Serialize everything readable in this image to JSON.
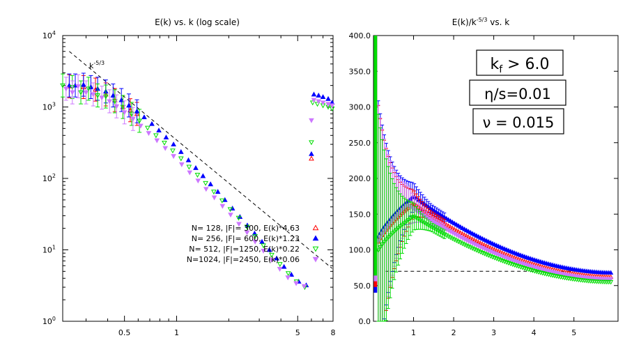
{
  "chart_data": [
    {
      "type": "scatter",
      "title": "E(k) vs. k (log scale)",
      "xscale": "log",
      "yscale": "log",
      "xlim": [
        0.22,
        8
      ],
      "ylim": [
        1,
        10000
      ],
      "xticks": [
        {
          "v": 0.5,
          "label": "0.5"
        },
        {
          "v": 1,
          "label": "1"
        },
        {
          "v": 5,
          "label": "5"
        },
        {
          "v": 8,
          "label": "8"
        }
      ],
      "yticks": [
        {
          "v": 1,
          "base": "10",
          "exp": "0"
        },
        {
          "v": 10,
          "base": "10",
          "exp": "1"
        },
        {
          "v": 100,
          "base": "10",
          "exp": "2"
        },
        {
          "v": 1000,
          "base": "10",
          "exp": "3"
        },
        {
          "v": 10000,
          "base": "10",
          "exp": "4"
        }
      ],
      "reference_line": {
        "label_base": "k",
        "label_exp": "-5/3",
        "k": [
          0.24,
          7.9
        ],
        "E": [
          6000,
          5.5
        ]
      },
      "legend_placement": "bottom-left",
      "series": [
        {
          "name": "N= 128, |F|= 300, E(k)*4.63",
          "color": "#ff0000",
          "marker": "triangle-up-open",
          "x": [
            0.24,
            0.29,
            0.34,
            0.39,
            0.44,
            0.49,
            0.54,
            0.59,
            6.0
          ],
          "y": [
            1950,
            1900,
            1750,
            1500,
            1250,
            1000,
            900,
            800,
            190
          ]
        },
        {
          "name": "N= 256, |F|= 600, E(k)*1.23",
          "color": "#0000ff",
          "marker": "triangle-up-filled",
          "x": [
            0.24,
            0.26,
            0.29,
            0.32,
            0.35,
            0.39,
            0.43,
            0.48,
            0.53,
            0.59,
            0.65,
            0.72,
            0.79,
            0.87,
            0.96,
            1.06,
            1.17,
            1.29,
            1.42,
            1.57,
            1.73,
            1.9,
            2.1,
            2.32,
            2.56,
            2.82,
            3.11,
            3.43,
            3.78,
            4.17,
            4.6,
            5.07,
            5.6,
            6.0,
            6.2,
            6.6,
            7.0,
            7.5,
            7.9
          ],
          "y": [
            2000,
            2000,
            2050,
            1900,
            1800,
            1650,
            1450,
            1250,
            1050,
            870,
            720,
            580,
            470,
            375,
            300,
            235,
            180,
            140,
            108,
            83,
            65,
            50,
            38,
            29,
            22,
            17,
            13,
            10,
            7.6,
            5.8,
            4.5,
            3.6,
            3.2,
            220,
            1500,
            1450,
            1380,
            1300,
            1150
          ]
        },
        {
          "name": "N= 512, |F|=1250, E(k)*0.22",
          "color": "#00dd00",
          "marker": "triangle-down-open",
          "x": [
            0.22,
            0.25,
            0.28,
            0.31,
            0.35,
            0.39,
            0.44,
            0.49,
            0.55,
            0.61,
            0.68,
            0.76,
            0.85,
            0.95,
            1.06,
            1.18,
            1.32,
            1.47,
            1.64,
            1.83,
            2.04,
            2.28,
            2.55,
            2.84,
            3.17,
            3.54,
            3.95,
            4.41,
            4.92,
            5.49,
            6.0,
            6.1,
            6.5,
            7.0,
            7.5,
            7.9
          ],
          "y": [
            2000,
            1900,
            1600,
            1800,
            1450,
            1400,
            1200,
            1000,
            800,
            640,
            510,
            400,
            315,
            245,
            190,
            145,
            112,
            86,
            65,
            49,
            37,
            28,
            21,
            15.5,
            11.5,
            8.5,
            6.3,
            4.7,
            3.6,
            3.0,
            320,
            1150,
            1100,
            1050,
            1000,
            950
          ]
        },
        {
          "name": "N=1024, |F|=2450, E(k)*0.06",
          "color": "#cc77ff",
          "marker": "triangle-down-filled",
          "x": [
            0.23,
            0.25,
            0.27,
            0.3,
            0.33,
            0.37,
            0.41,
            0.45,
            0.5,
            0.56,
            0.62,
            0.69,
            0.77,
            0.86,
            0.96,
            1.07,
            1.19,
            1.33,
            1.48,
            1.65,
            1.84,
            2.05,
            2.29,
            2.55,
            2.84,
            3.17,
            3.53,
            3.94,
            4.39,
            4.9,
            5.46,
            6.0,
            6.2,
            6.6,
            7.0,
            7.5,
            7.9
          ],
          "y": [
            1800,
            1600,
            1950,
            1600,
            1500,
            1350,
            1200,
            1020,
            840,
            680,
            545,
            430,
            340,
            265,
            205,
            157,
            121,
            93,
            71,
            54,
            41,
            31,
            23,
            17.5,
            13,
            9.7,
            7.2,
            5.4,
            4.1,
            3.4,
            3.1,
            650,
            1250,
            1200,
            1150,
            1100,
            1050
          ]
        }
      ]
    },
    {
      "type": "scatter",
      "title_prefix": "E(k)/k",
      "title_exp": "-5/3",
      "title_suffix": " vs. k",
      "xlim": [
        0,
        6.1
      ],
      "ylim": [
        0,
        400
      ],
      "xticks": [
        1,
        2,
        3,
        4,
        5
      ],
      "yticks": [
        {
          "v": 0,
          "label": "0.0"
        },
        {
          "v": 50,
          "label": "50.0"
        },
        {
          "v": 100,
          "label": "100.0"
        },
        {
          "v": 150,
          "label": "150.0"
        },
        {
          "v": 200,
          "label": "200.0"
        },
        {
          "v": 250,
          "label": "250.0"
        },
        {
          "v": 300,
          "label": "300.0"
        },
        {
          "v": 350,
          "label": "350.0"
        },
        {
          "v": 400,
          "label": "400.0"
        }
      ],
      "reference_line": {
        "x": [
          0.3,
          5.5
        ],
        "y": [
          70,
          70
        ]
      },
      "annotations": {
        "kf_main": "k",
        "kf_sub": "f",
        "kf_rest": " > 6.0",
        "eta": "η/s=0.01",
        "nu": "ν = 0.015"
      },
      "series": [
        {
          "color": "#0000ff",
          "marker": "triangle-up-filled",
          "k_peak": 1.0,
          "y_peak": 175,
          "y_end": 68
        },
        {
          "color": "#ff0000",
          "marker": "triangle-up-open",
          "k_peak": 1.0,
          "y_peak": 165,
          "y_end": 62
        },
        {
          "color": "#cc77ff",
          "marker": "triangle-down-filled",
          "k_peak": 0.85,
          "y_peak": 163,
          "y_end": 59
        },
        {
          "color": "#00dd00",
          "marker": "triangle-down-open",
          "k_peak": 1.0,
          "y_peak": 147,
          "y_end": 55
        }
      ]
    }
  ]
}
